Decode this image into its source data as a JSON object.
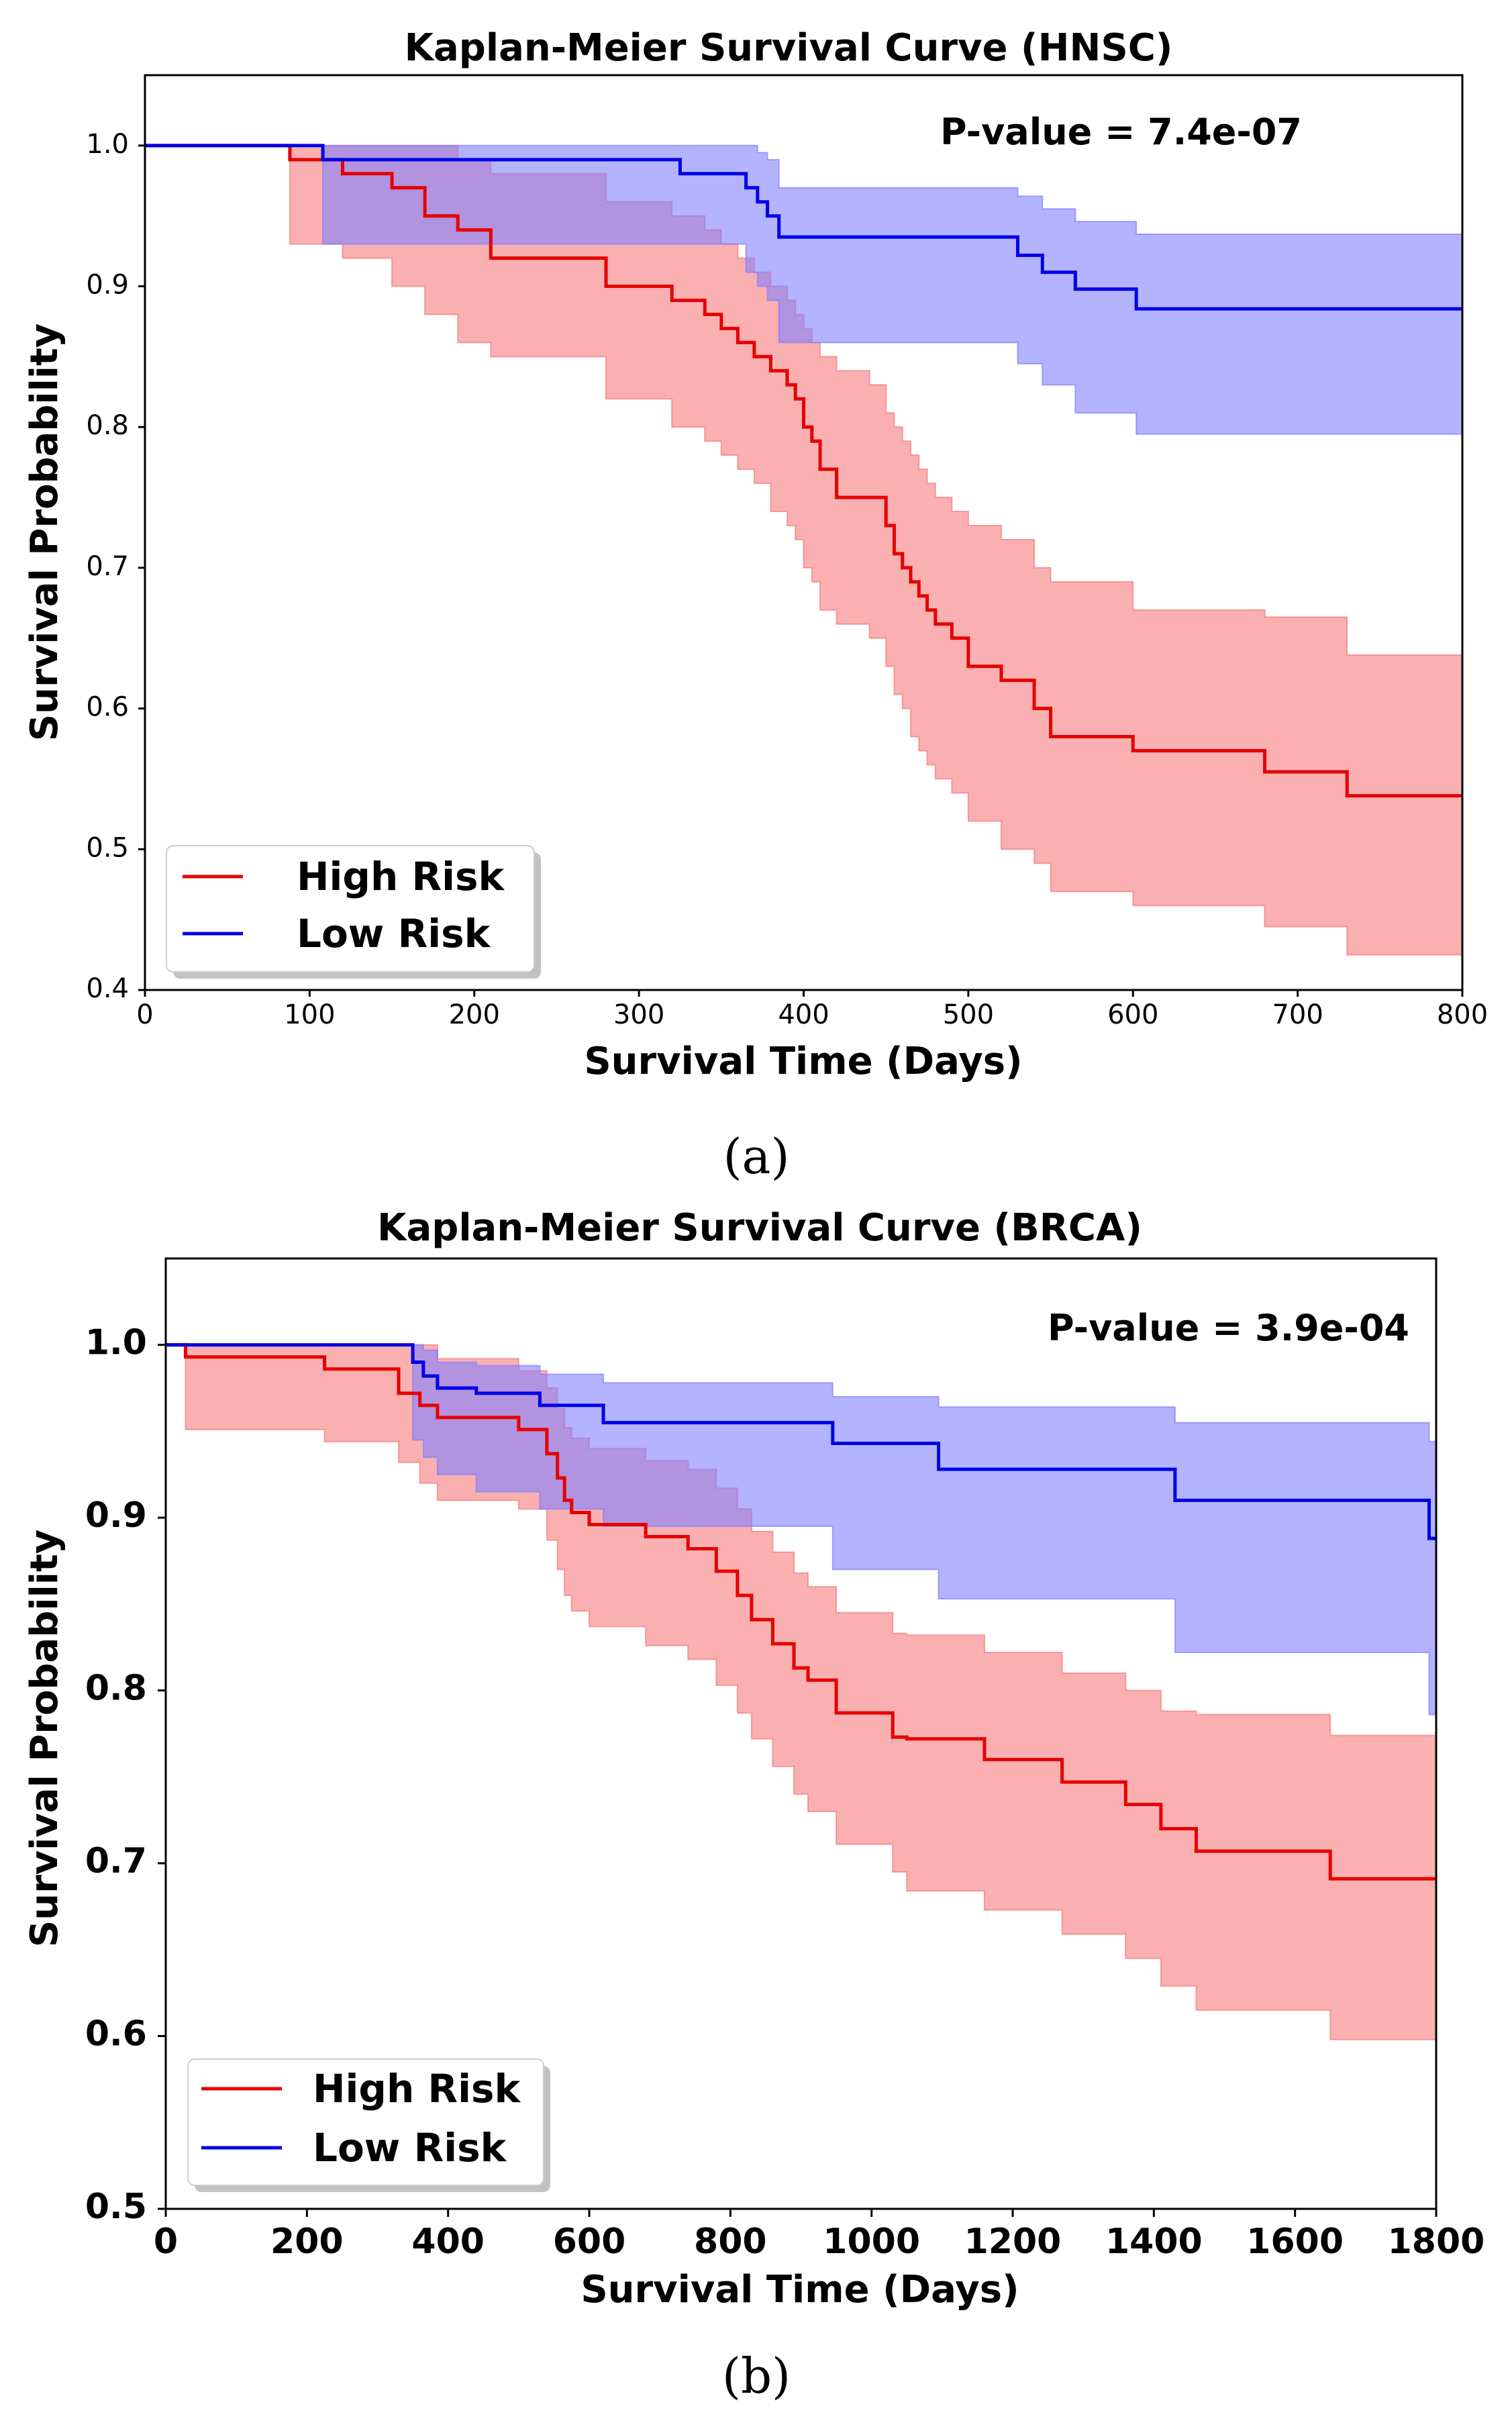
{
  "chart_data": [
    {
      "type": "line",
      "subtype": "kaplan-meier step with confidence bands",
      "title": "Kaplan-Meier Survival Curve (HNSC)",
      "xlabel": "Survival Time (Days)",
      "ylabel": "Survival Probability",
      "xlim": [
        0,
        800
      ],
      "ylim": [
        0.4,
        1.05
      ],
      "xticks": [
        "0",
        "100",
        "200",
        "300",
        "400",
        "500",
        "600",
        "700",
        "800"
      ],
      "yticks": [
        "0.4",
        "0.5",
        "0.6",
        "0.7",
        "0.8",
        "0.9",
        "1.0"
      ],
      "annotation": "P-value = 7.4e-07",
      "caption": "(a)",
      "legend_position": "lower-left",
      "grid": false,
      "series": [
        {
          "name": "High Risk",
          "color": "#e60000",
          "band_color": "#f77b7b",
          "x": [
            0,
            88,
            120,
            150,
            170,
            190,
            210,
            280,
            320,
            340,
            350,
            360,
            370,
            380,
            390,
            395,
            400,
            405,
            410,
            420,
            440,
            450,
            455,
            460,
            465,
            470,
            475,
            480,
            490,
            500,
            520,
            540,
            550,
            600,
            680,
            730,
            800
          ],
          "y": [
            1.0,
            0.99,
            0.98,
            0.97,
            0.95,
            0.94,
            0.92,
            0.9,
            0.89,
            0.88,
            0.87,
            0.86,
            0.85,
            0.84,
            0.83,
            0.82,
            0.8,
            0.79,
            0.77,
            0.75,
            0.75,
            0.73,
            0.71,
            0.7,
            0.69,
            0.68,
            0.67,
            0.66,
            0.65,
            0.63,
            0.62,
            0.6,
            0.58,
            0.57,
            0.555,
            0.538,
            0.538
          ],
          "lower": [
            1.0,
            0.93,
            0.92,
            0.9,
            0.88,
            0.86,
            0.85,
            0.82,
            0.8,
            0.79,
            0.78,
            0.77,
            0.76,
            0.74,
            0.73,
            0.72,
            0.7,
            0.69,
            0.67,
            0.66,
            0.65,
            0.63,
            0.61,
            0.6,
            0.58,
            0.57,
            0.56,
            0.55,
            0.54,
            0.52,
            0.5,
            0.49,
            0.47,
            0.46,
            0.445,
            0.425,
            0.425
          ],
          "upper": [
            1.0,
            1.0,
            1.0,
            1.0,
            1.0,
            0.99,
            0.98,
            0.96,
            0.95,
            0.94,
            0.93,
            0.92,
            0.91,
            0.9,
            0.89,
            0.88,
            0.87,
            0.86,
            0.85,
            0.84,
            0.83,
            0.81,
            0.8,
            0.79,
            0.78,
            0.77,
            0.76,
            0.75,
            0.74,
            0.73,
            0.72,
            0.7,
            0.69,
            0.67,
            0.665,
            0.638,
            0.638
          ]
        },
        {
          "name": "Low Risk",
          "color": "#0000e6",
          "band_color": "#8080ff",
          "x": [
            0,
            108,
            325,
            365,
            372,
            378,
            385,
            530,
            545,
            565,
            602,
            800
          ],
          "y": [
            1.0,
            0.99,
            0.98,
            0.97,
            0.96,
            0.95,
            0.935,
            0.922,
            0.91,
            0.898,
            0.884,
            0.884
          ],
          "lower": [
            1.0,
            0.93,
            0.93,
            0.91,
            0.9,
            0.89,
            0.86,
            0.845,
            0.83,
            0.81,
            0.795,
            0.795
          ],
          "upper": [
            1.0,
            1.0,
            1.0,
            1.0,
            0.995,
            0.99,
            0.97,
            0.964,
            0.955,
            0.946,
            0.937,
            0.937
          ]
        }
      ]
    },
    {
      "type": "line",
      "subtype": "kaplan-meier step with confidence bands",
      "title": "Kaplan-Meier Survival Curve (BRCA)",
      "xlabel": "Survival Time (Days)",
      "ylabel": "Survival Probability",
      "xlim": [
        0,
        1800
      ],
      "ylim": [
        0.5,
        1.05
      ],
      "xticks": [
        "0",
        "200",
        "400",
        "600",
        "800",
        "1000",
        "1200",
        "1400",
        "1600",
        "1800"
      ],
      "yticks": [
        "0.5",
        "0.6",
        "0.7",
        "0.8",
        "0.9",
        "1.0"
      ],
      "annotation": "P-value = 3.9e-04",
      "caption": "(b)",
      "legend_position": "lower-left",
      "grid": false,
      "series": [
        {
          "name": "High Risk",
          "color": "#e60000",
          "band_color": "#f77b7b",
          "x": [
            0,
            28,
            225,
            330,
            360,
            385,
            500,
            540,
            555,
            565,
            575,
            600,
            680,
            740,
            780,
            810,
            830,
            860,
            890,
            910,
            950,
            1030,
            1050,
            1160,
            1270,
            1360,
            1410,
            1460,
            1650,
            1800
          ],
          "y": [
            1.0,
            0.993,
            0.986,
            0.972,
            0.965,
            0.958,
            0.951,
            0.937,
            0.923,
            0.91,
            0.903,
            0.896,
            0.889,
            0.882,
            0.869,
            0.855,
            0.841,
            0.827,
            0.813,
            0.806,
            0.787,
            0.773,
            0.772,
            0.76,
            0.747,
            0.734,
            0.72,
            0.707,
            0.691,
            0.691
          ],
          "lower": [
            1.0,
            0.951,
            0.944,
            0.932,
            0.92,
            0.91,
            0.905,
            0.887,
            0.87,
            0.855,
            0.846,
            0.837,
            0.826,
            0.818,
            0.803,
            0.787,
            0.772,
            0.756,
            0.74,
            0.73,
            0.711,
            0.695,
            0.684,
            0.673,
            0.659,
            0.645,
            0.629,
            0.615,
            0.598,
            0.588
          ],
          "upper": [
            1.0,
            1.0,
            1.0,
            1.0,
            1.0,
            0.992,
            0.985,
            0.975,
            0.963,
            0.952,
            0.946,
            0.94,
            0.933,
            0.928,
            0.917,
            0.905,
            0.892,
            0.88,
            0.868,
            0.86,
            0.845,
            0.833,
            0.832,
            0.822,
            0.81,
            0.8,
            0.788,
            0.786,
            0.774,
            0.774
          ]
        },
        {
          "name": "Low Risk",
          "color": "#0000e6",
          "band_color": "#8080ff",
          "x": [
            0,
            350,
            365,
            385,
            440,
            530,
            620,
            945,
            1095,
            1430,
            1790,
            1800
          ],
          "y": [
            1.0,
            0.99,
            0.982,
            0.975,
            0.972,
            0.965,
            0.955,
            0.943,
            0.928,
            0.91,
            0.888,
            0.888
          ],
          "lower": [
            1.0,
            0.945,
            0.935,
            0.925,
            0.915,
            0.905,
            0.895,
            0.87,
            0.853,
            0.822,
            0.786,
            0.786
          ],
          "upper": [
            1.0,
            1.0,
            0.997,
            0.99,
            0.988,
            0.983,
            0.978,
            0.97,
            0.964,
            0.955,
            0.944,
            0.944
          ]
        }
      ]
    }
  ]
}
